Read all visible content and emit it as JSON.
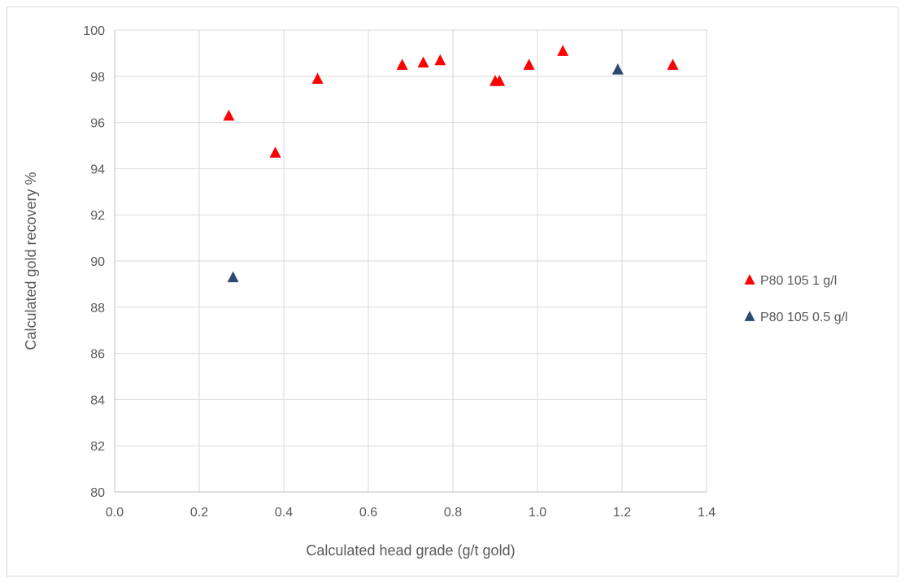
{
  "chart_data": {
    "type": "scatter",
    "title": "",
    "xlabel": "Calculated head grade (g/t gold)",
    "ylabel": "Calculated gold recovery %",
    "xlim": [
      0.0,
      1.4
    ],
    "ylim": [
      80,
      100
    ],
    "xticks": [
      "0.0",
      "0.2",
      "0.4",
      "0.6",
      "0.8",
      "1.0",
      "1.2",
      "1.4"
    ],
    "yticks": [
      "80",
      "82",
      "84",
      "86",
      "88",
      "90",
      "92",
      "94",
      "96",
      "98",
      "100"
    ],
    "grid": true,
    "legend_position": "right",
    "series": [
      {
        "name": "P80 105 1 g/l",
        "color": "#ff0000",
        "marker": "triangle",
        "points": [
          {
            "x": 0.27,
            "y": 96.3
          },
          {
            "x": 0.38,
            "y": 94.7
          },
          {
            "x": 0.48,
            "y": 97.9
          },
          {
            "x": 0.68,
            "y": 98.5
          },
          {
            "x": 0.73,
            "y": 98.6
          },
          {
            "x": 0.77,
            "y": 98.7
          },
          {
            "x": 0.9,
            "y": 97.8
          },
          {
            "x": 0.91,
            "y": 97.8
          },
          {
            "x": 0.98,
            "y": 98.5
          },
          {
            "x": 1.06,
            "y": 99.1
          },
          {
            "x": 1.32,
            "y": 98.5
          }
        ]
      },
      {
        "name": "P80 105 0.5 g/l",
        "color": "#2e4a70",
        "marker": "triangle",
        "points": [
          {
            "x": 0.28,
            "y": 89.3
          },
          {
            "x": 1.19,
            "y": 98.3
          }
        ]
      }
    ]
  }
}
